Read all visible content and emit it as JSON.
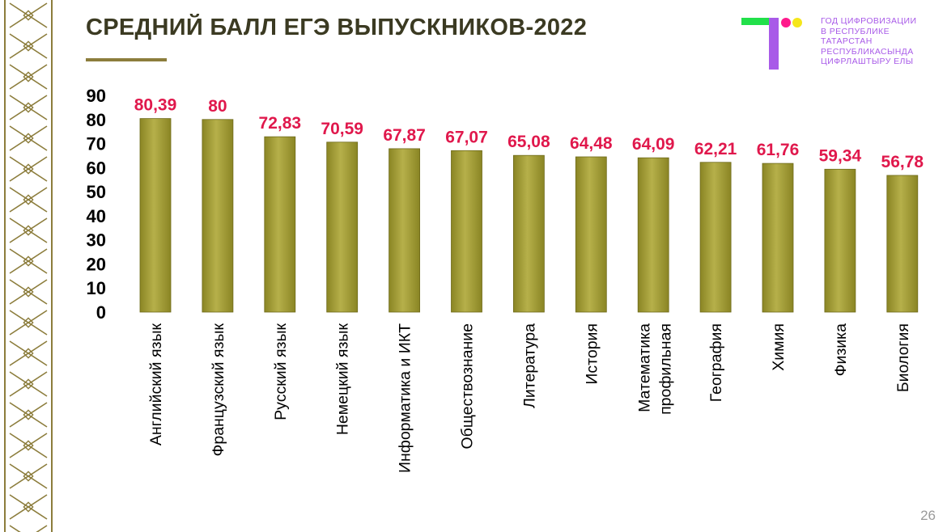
{
  "slide": {
    "title": "СРЕДНИЙ БАЛЛ ЕГЭ ВЫПУСКНИКОВ-2022",
    "page_number": "26",
    "logo_text_lines": [
      "ГОД ЦИФРОВИЗАЦИИ",
      "В РЕСПУБЛИКЕ",
      "ТАТАРСТАН",
      "РЕСПУБЛИКАСЫНДА",
      "ЦИФРЛАШТЫРУ ЕЛЫ"
    ],
    "colors": {
      "title": "#3b3a22",
      "accent_line": "#8c7d3c",
      "bar_fill": "#8a8524",
      "bar_highlight": "#b6b04a",
      "data_label": "#e0184c",
      "logo_purple": "#a85ae8",
      "logo_green": "#22e04a",
      "logo_pink": "#ff1a8c",
      "logo_yellow": "#f5e61a",
      "ornament": "#8c7d3c"
    }
  },
  "chart_data": {
    "type": "bar",
    "categories": [
      "Английский язык",
      "Французский язык",
      "Русский язык",
      "Немецкий язык",
      "Информатика и ИКТ",
      "Обществознание",
      "Литература",
      "История",
      "Математика профильная",
      "География",
      "Химия",
      "Физика",
      "Биология"
    ],
    "category_label_lines": [
      [
        "Английский язык"
      ],
      [
        "Французский язык"
      ],
      [
        "Русский язык"
      ],
      [
        "Немецкий язык"
      ],
      [
        "Информатика и ИКТ"
      ],
      [
        "Обществознание"
      ],
      [
        "Литература"
      ],
      [
        "История"
      ],
      [
        "Математика",
        "профильная"
      ],
      [
        "География"
      ],
      [
        "Химия"
      ],
      [
        "Физика"
      ],
      [
        "Биология"
      ]
    ],
    "values": [
      80.39,
      80,
      72.83,
      70.59,
      67.87,
      67.07,
      65.08,
      64.48,
      64.09,
      62.21,
      61.76,
      59.34,
      56.78
    ],
    "data_labels": [
      "80,39",
      "80",
      "72,83",
      "70,59",
      "67,87",
      "67,07",
      "65,08",
      "64,48",
      "64,09",
      "62,21",
      "61,76",
      "59,34",
      "56,78"
    ],
    "y_ticks": [
      "0",
      "10",
      "20",
      "30",
      "40",
      "50",
      "60",
      "70",
      "80",
      "90"
    ],
    "ylim": [
      0,
      90
    ],
    "grid": false,
    "legend": "none"
  }
}
